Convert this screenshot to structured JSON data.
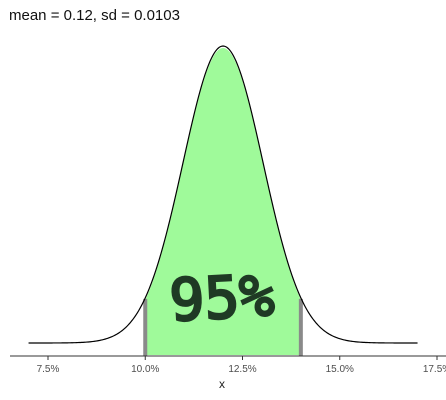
{
  "chart_data": {
    "type": "area",
    "title": "mean = 0.12, sd = 0.0103",
    "xlabel": "x",
    "ylabel": "",
    "distribution": {
      "kind": "normal",
      "mean": 0.12,
      "sd": 0.0103
    },
    "xlim": [
      0.07,
      0.17
    ],
    "x_ticks": [
      0.075,
      0.1,
      0.125,
      0.15,
      0.175
    ],
    "x_tick_labels": [
      "7.5%",
      "10.0%",
      "12.5%",
      "15.0%",
      "17.5%"
    ],
    "shaded_region": {
      "from": 0.1,
      "to": 0.14,
      "fill": "#9ffa9a"
    },
    "interval_lines": [
      0.1,
      0.14
    ],
    "annotation": {
      "text": "95%",
      "color": "#1f3a24",
      "style": "handwritten"
    },
    "grid": false,
    "legend": "none",
    "colors": {
      "curve": "#000000",
      "shade": "#9ffa9a",
      "interval_line": "#8a8a8a",
      "axis": "#333333"
    }
  }
}
